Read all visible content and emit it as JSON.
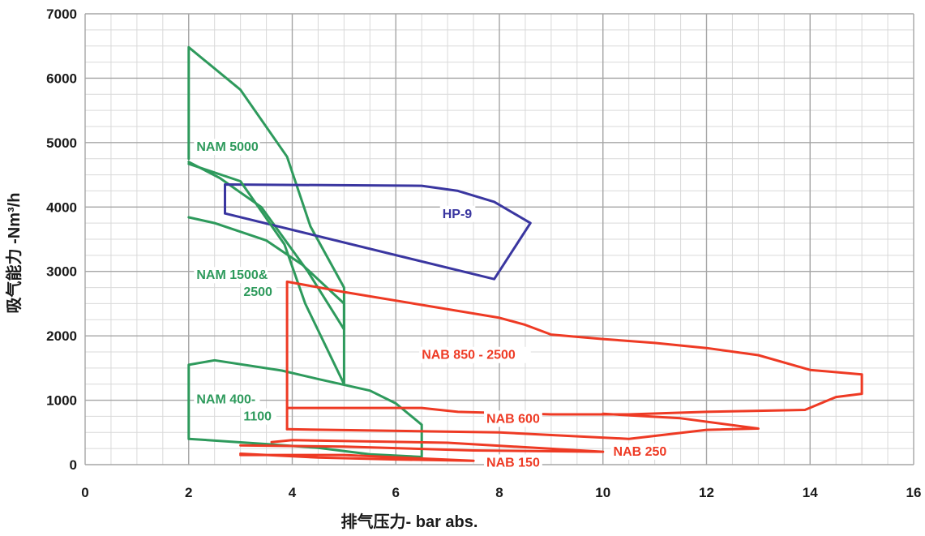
{
  "chart_data": {
    "type": "line",
    "title": "",
    "xlabel": "排气压力- bar abs.",
    "ylabel": "吸气能力 -Nm³/h",
    "xlim": [
      0,
      16
    ],
    "ylim": [
      0,
      7000
    ],
    "x_ticks": [
      "0",
      "2",
      "4",
      "6",
      "8",
      "10",
      "12",
      "14",
      "16"
    ],
    "y_ticks": [
      "0",
      "1000",
      "2000",
      "3000",
      "4000",
      "5000",
      "6000",
      "7000"
    ],
    "grid": true,
    "colors": {
      "NAM": "#2e9a5c",
      "HP": "#3a36a0",
      "NAB": "#ee3a24",
      "grid_minor": "#d9d9d9",
      "grid_major": "#a6a6a6"
    },
    "series": [
      {
        "name": "NAM 5000",
        "color": "#2e9a5c",
        "label": "NAM 5000",
        "label_pos": [
          2.15,
          4870
        ],
        "points": [
          [
            2,
            4750
          ],
          [
            2,
            6480
          ],
          [
            3,
            5820
          ],
          [
            3.9,
            4780
          ],
          [
            4.35,
            3700
          ],
          [
            5,
            2750
          ],
          [
            5,
            2100
          ],
          [
            4.3,
            3000
          ],
          [
            3.4,
            4000
          ],
          [
            2.6,
            4450
          ],
          [
            2,
            4700
          ]
        ]
      },
      {
        "name": "HP-9",
        "color": "#3a36a0",
        "label": "HP-9",
        "label_pos": [
          6.9,
          3830
        ],
        "points": [
          [
            2.7,
            3900
          ],
          [
            2.7,
            4350
          ],
          [
            6.5,
            4330
          ],
          [
            7.2,
            4250
          ],
          [
            7.9,
            4080
          ],
          [
            8.6,
            3750
          ],
          [
            7.9,
            2880
          ],
          [
            2.7,
            3900
          ]
        ]
      },
      {
        "name": "NAM 1500&2500",
        "color": "#2e9a5c",
        "label": [
          "NAM 1500&",
          "2500"
        ],
        "label_pos": [
          2.15,
          2880
        ],
        "points": [
          [
            2,
            3840
          ],
          [
            2.5,
            3750
          ],
          [
            3.5,
            3480
          ],
          [
            4.2,
            3100
          ],
          [
            5,
            2500
          ],
          [
            5,
            1250
          ],
          [
            4.25,
            2500
          ],
          [
            3.85,
            3420
          ],
          [
            3,
            4400
          ],
          [
            2,
            4670
          ]
        ]
      },
      {
        "name": "NAM 400-1100",
        "color": "#2e9a5c",
        "label": [
          "NAM 400-",
          "1100"
        ],
        "label_pos": [
          2.15,
          950
        ],
        "points": [
          [
            2,
            400
          ],
          [
            2,
            1550
          ],
          [
            2.5,
            1620
          ],
          [
            3.8,
            1460
          ],
          [
            4.5,
            1330
          ],
          [
            5.5,
            1150
          ],
          [
            6,
            950
          ],
          [
            6.5,
            620
          ],
          [
            6.5,
            120
          ],
          [
            5.5,
            160
          ],
          [
            4.5,
            260
          ],
          [
            3.5,
            320
          ],
          [
            2,
            400
          ]
        ]
      },
      {
        "name": "NAB 850 - 2500",
        "color": "#ee3a24",
        "label": "NAB 850 - 2500",
        "label_pos": [
          6.5,
          1640
        ],
        "points": [
          [
            3.9,
            550
          ],
          [
            3.9,
            2840
          ],
          [
            5,
            2680
          ],
          [
            6.5,
            2480
          ],
          [
            8,
            2280
          ],
          [
            8.5,
            2170
          ],
          [
            9,
            2020
          ],
          [
            10,
            1950
          ],
          [
            11,
            1890
          ],
          [
            12,
            1810
          ],
          [
            13,
            1700
          ],
          [
            14,
            1470
          ],
          [
            15,
            1400
          ],
          [
            15,
            1100
          ],
          [
            14.5,
            1050
          ],
          [
            13.9,
            850
          ],
          [
            12,
            820
          ],
          [
            10.5,
            780
          ],
          [
            9,
            780
          ],
          [
            7.2,
            820
          ],
          [
            6.5,
            880
          ],
          [
            3.9,
            880
          ]
        ]
      },
      {
        "name": "NAB 600",
        "color": "#ee3a24",
        "label": "NAB 600",
        "label_pos": [
          7.75,
          650
        ],
        "points": [
          [
            3.9,
            550
          ],
          [
            8,
            500
          ],
          [
            10.5,
            400
          ],
          [
            12,
            540
          ],
          [
            13,
            560
          ],
          [
            11.5,
            720
          ],
          [
            10,
            790
          ]
        ]
      },
      {
        "name": "NAB 250",
        "color": "#ee3a24",
        "label": "NAB 250",
        "label_pos": [
          10.2,
          140
        ],
        "points": [
          [
            3,
            300
          ],
          [
            5,
            280
          ],
          [
            7.5,
            220
          ],
          [
            10,
            200
          ],
          [
            7,
            340
          ],
          [
            4,
            380
          ],
          [
            3.6,
            350
          ]
        ]
      },
      {
        "name": "NAB 150",
        "color": "#ee3a24",
        "label": "NAB 150",
        "label_pos": [
          7.75,
          -30
        ],
        "points": [
          [
            3,
            150
          ],
          [
            5,
            150
          ],
          [
            7.5,
            60
          ],
          [
            6,
            80
          ],
          [
            4.5,
            110
          ],
          [
            3,
            170
          ]
        ]
      }
    ]
  }
}
